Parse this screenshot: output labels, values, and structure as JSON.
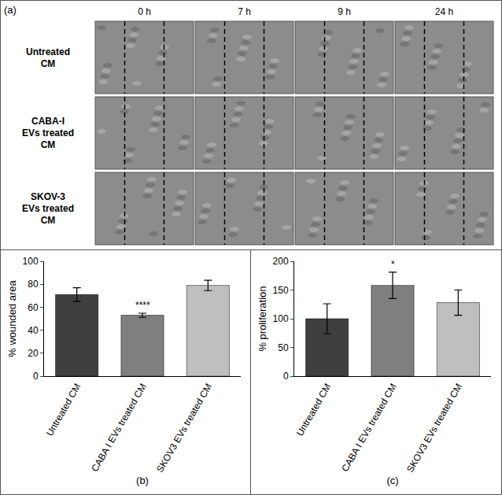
{
  "panel_a": {
    "label": "(a)",
    "columns": [
      "0 h",
      "7 h",
      "9 h",
      "24 h"
    ],
    "rows": [
      "Untreated CM",
      "CABA-I EVs treated CM",
      "SKOV-3 EVs treated CM"
    ]
  },
  "chart_data": [
    {
      "type": "bar",
      "xlabel": "(b)",
      "ylabel": "% wounded area",
      "categories": [
        "Untreated CM",
        "CABA I EVs treated CM",
        "SKOV3 EVs treated CM"
      ],
      "values": [
        71,
        53,
        79
      ],
      "errors": [
        6,
        1.8,
        4.5
      ],
      "colors": [
        "#3f3f3f",
        "#7f7f7f",
        "#bfbfbf"
      ],
      "ylim": [
        0,
        100
      ],
      "yticks": [
        0,
        20,
        40,
        60,
        80,
        100
      ],
      "grid": false,
      "annotations": [
        {
          "text": "****",
          "category": "CABA I EVs treated CM"
        }
      ]
    },
    {
      "type": "bar",
      "xlabel": "(c)",
      "ylabel": "% proliferation",
      "categories": [
        "Untreated CM",
        "CABA I EVs treated CM",
        "SKOV3 EVs treated CM"
      ],
      "values": [
        100,
        158,
        128
      ],
      "errors": [
        26,
        23,
        22
      ],
      "colors": [
        "#3f3f3f",
        "#7f7f7f",
        "#bfbfbf"
      ],
      "ylim": [
        0,
        200
      ],
      "yticks": [
        0,
        50,
        100,
        150,
        200
      ],
      "grid": false,
      "annotations": [
        {
          "text": "*",
          "category": "CABA I EVs treated CM"
        }
      ]
    }
  ]
}
